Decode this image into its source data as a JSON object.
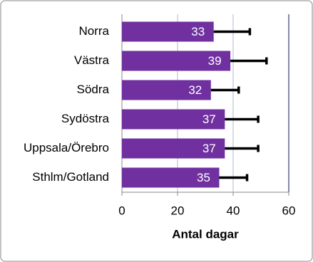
{
  "chart_data": {
    "type": "bar",
    "orientation": "horizontal",
    "x_label": "Antal dagar",
    "categories": [
      "Norra",
      "Västra",
      "Södra",
      "Sydöstra",
      "Uppsala/Örebro",
      "Sthlm/Gotland"
    ],
    "values": [
      33,
      39,
      32,
      37,
      37,
      35
    ],
    "errors": [
      13,
      13,
      10,
      12,
      12,
      10
    ],
    "color": "#7030a0",
    "xlim": [
      0,
      60
    ],
    "xticks": [
      0,
      20,
      40,
      60
    ],
    "grid": true
  }
}
